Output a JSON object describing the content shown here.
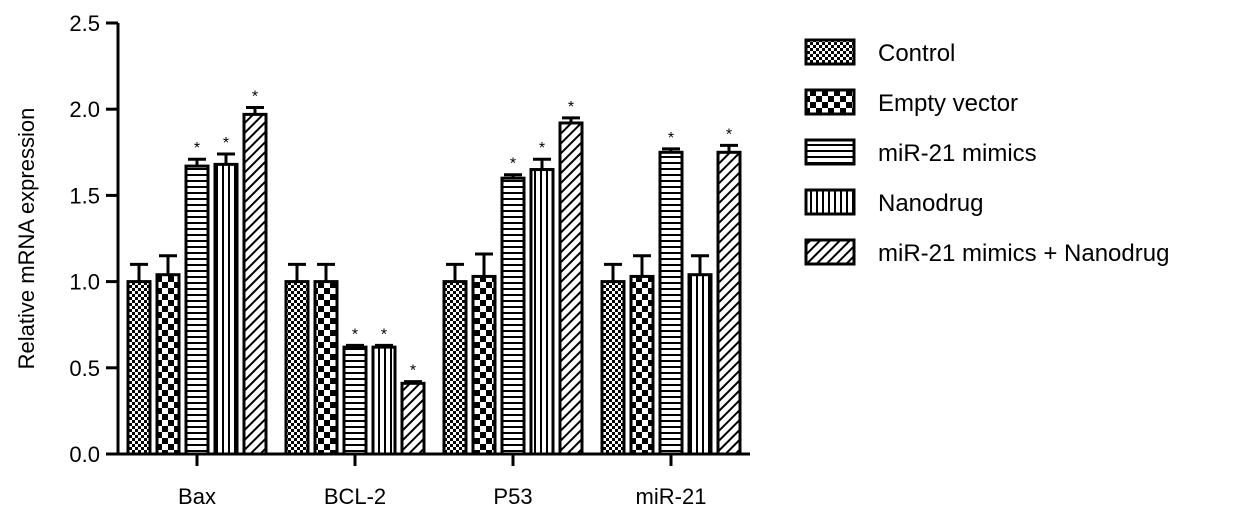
{
  "chart_data": {
    "type": "bar",
    "title": "",
    "xlabel": "",
    "ylabel": "Relative mRNA expression",
    "ylim": [
      0,
      2.5
    ],
    "yticks": [
      "0.0",
      "0.5",
      "1.0",
      "1.5",
      "2.0",
      "2.5"
    ],
    "categories": [
      "Bax",
      "BCL-2",
      "P53",
      "miR-21"
    ],
    "legend_position": "right",
    "grid": false,
    "series": [
      {
        "name": "Control",
        "pattern": "checker",
        "values": [
          1.0,
          1.0,
          1.0,
          1.0
        ],
        "errors": [
          0.1,
          0.1,
          0.1,
          0.1
        ],
        "significant": [
          false,
          false,
          false,
          false
        ]
      },
      {
        "name": "Empty vector",
        "pattern": "large-checker",
        "values": [
          1.04,
          1.0,
          1.03,
          1.03
        ],
        "errors": [
          0.11,
          0.1,
          0.13,
          0.12
        ],
        "significant": [
          false,
          false,
          false,
          false
        ]
      },
      {
        "name": "miR-21 mimics",
        "pattern": "horizontal-lines",
        "values": [
          1.67,
          0.62,
          1.6,
          1.75
        ],
        "errors": [
          0.04,
          0.01,
          0.02,
          0.02
        ],
        "significant": [
          true,
          true,
          true,
          true
        ]
      },
      {
        "name": "Nanodrug",
        "pattern": "vertical-lines",
        "values": [
          1.68,
          0.62,
          1.65,
          1.04
        ],
        "errors": [
          0.06,
          0.01,
          0.06,
          0.11
        ],
        "significant": [
          true,
          true,
          true,
          false
        ]
      },
      {
        "name": "miR-21 mimics + Nanodrug",
        "pattern": "diagonal-lines",
        "values": [
          1.97,
          0.41,
          1.92,
          1.75
        ],
        "errors": [
          0.04,
          0.01,
          0.03,
          0.04
        ],
        "significant": [
          true,
          true,
          true,
          true
        ]
      }
    ],
    "significance_marker": "*"
  }
}
